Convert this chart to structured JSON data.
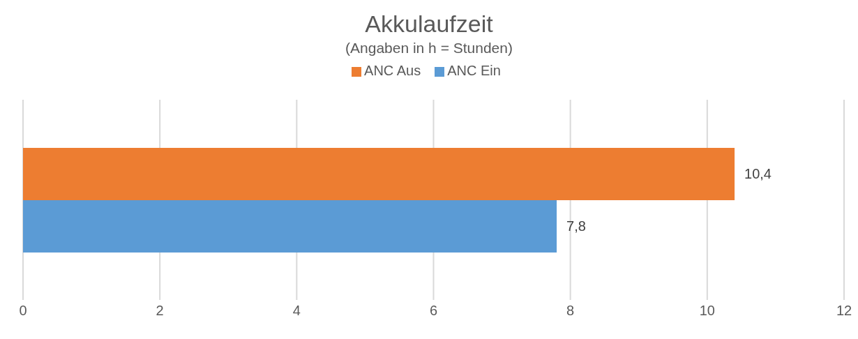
{
  "chart_data": {
    "type": "bar",
    "orientation": "horizontal",
    "title": "Akkulaufzeit",
    "subtitle": "(Angaben in h = Stunden)",
    "categories": [
      null
    ],
    "series": [
      {
        "name": "ANC Aus",
        "color": "#ed7d31",
        "values": [
          10.4
        ],
        "value_labels": [
          "10,4"
        ]
      },
      {
        "name": "ANC Ein",
        "color": "#5b9bd5",
        "values": [
          7.8
        ],
        "value_labels": [
          "7,8"
        ]
      }
    ],
    "xlim": [
      0,
      12
    ],
    "xticks": [
      0,
      2,
      4,
      6,
      8,
      10,
      12
    ],
    "grid": "x",
    "legend": "top",
    "tick_labels": "x"
  }
}
